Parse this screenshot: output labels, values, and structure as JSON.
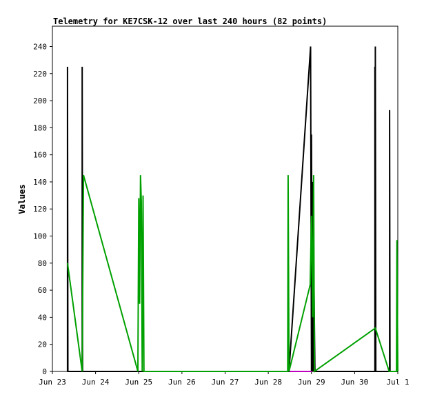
{
  "chart_data": {
    "type": "line",
    "title": "Telemetry for KE7CSK-12 over last 240 hours (82 points)",
    "xlabel": "",
    "ylabel": "Values",
    "ylim": [
      0,
      255
    ],
    "y_ticks": [
      0,
      20,
      40,
      60,
      80,
      100,
      120,
      140,
      160,
      180,
      200,
      220,
      240
    ],
    "x_ticks": [
      {
        "label": "Jun 23",
        "day": 0
      },
      {
        "label": "Jun 24",
        "day": 1
      },
      {
        "label": "Jun 25",
        "day": 2
      },
      {
        "label": "Jun 26",
        "day": 3
      },
      {
        "label": "Jun 27",
        "day": 4
      },
      {
        "label": "Jun 28",
        "day": 5
      },
      {
        "label": "Jun 29",
        "day": 6
      },
      {
        "label": "Jun 30",
        "day": 7
      },
      {
        "label": "Jul 1",
        "day": 8
      }
    ],
    "xlim": [
      0,
      8
    ],
    "grid": false,
    "series": [
      {
        "color": "#000000",
        "points": [
          [
            0.35,
            0
          ],
          [
            0.35,
            225
          ],
          [
            0.36,
            0
          ],
          [
            0.69,
            0
          ],
          [
            0.69,
            225
          ],
          [
            0.7,
            0
          ],
          [
            5.48,
            0
          ],
          [
            5.98,
            240
          ],
          [
            6.0,
            0
          ],
          [
            6.0,
            175
          ],
          [
            6.02,
            0
          ],
          [
            6.02,
            140
          ],
          [
            6.04,
            0
          ],
          [
            6.04,
            100
          ],
          [
            6.06,
            0
          ],
          [
            6.06,
            60
          ],
          [
            6.08,
            0
          ],
          [
            7.47,
            0
          ],
          [
            7.47,
            225
          ],
          [
            7.48,
            0
          ],
          [
            7.48,
            240
          ],
          [
            7.49,
            0
          ],
          [
            7.81,
            0
          ],
          [
            7.81,
            193
          ],
          [
            7.82,
            0
          ],
          [
            8.0,
            0
          ]
        ]
      },
      {
        "color": "#00a000",
        "points": [
          [
            0.35,
            80
          ],
          [
            0.69,
            0
          ],
          [
            0.72,
            145
          ],
          [
            1.98,
            0
          ],
          [
            2.0,
            128
          ],
          [
            2.02,
            50
          ],
          [
            2.04,
            145
          ],
          [
            2.06,
            125
          ],
          [
            2.08,
            0
          ],
          [
            2.1,
            130
          ],
          [
            2.12,
            0
          ],
          [
            5.45,
            0
          ],
          [
            5.46,
            145
          ],
          [
            5.48,
            0
          ],
          [
            5.97,
            64
          ],
          [
            6.0,
            115
          ],
          [
            6.03,
            40
          ],
          [
            6.05,
            145
          ],
          [
            6.07,
            0
          ],
          [
            7.48,
            32
          ],
          [
            7.8,
            0
          ],
          [
            7.97,
            0
          ],
          [
            7.98,
            97
          ],
          [
            8.0,
            0
          ]
        ]
      },
      {
        "color": "#c000c0",
        "points": [
          [
            5.5,
            0
          ],
          [
            6.0,
            0
          ]
        ]
      }
    ]
  }
}
